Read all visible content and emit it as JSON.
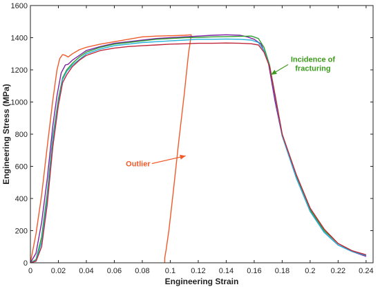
{
  "chart_data": {
    "type": "line",
    "xlabel": "Engineering Strain",
    "ylabel": "Engineering Stress (MPa)",
    "xlim": [
      0,
      0.245
    ],
    "ylim": [
      0,
      1600
    ],
    "xticks": [
      0,
      0.02,
      0.04,
      0.06,
      0.08,
      0.1,
      0.12,
      0.14,
      0.16,
      0.18,
      0.2,
      0.22,
      0.24
    ],
    "xtick_labels": [
      "0",
      "0.02",
      "0.04",
      "0.06",
      "0.08",
      "0.1",
      "0.12",
      "0.14",
      "0.16",
      "0.18",
      "0.2",
      "0.22",
      "0.24"
    ],
    "yticks": [
      0,
      200,
      400,
      600,
      800,
      1000,
      1200,
      1400,
      1600
    ],
    "ytick_labels": [
      "0",
      "200",
      "400",
      "600",
      "800",
      "1000",
      "1200",
      "1400",
      "1600"
    ],
    "grid": false,
    "legend": "none",
    "series": [
      {
        "color": "#f05a28",
        "x": [
          0,
          0.004,
          0.008,
          0.012,
          0.016,
          0.019,
          0.021,
          0.023,
          0.025,
          0.027,
          0.03,
          0.035,
          0.04,
          0.05,
          0.06,
          0.07,
          0.08,
          0.09,
          0.1,
          0.11,
          0.115,
          0.113,
          0.11,
          0.106,
          0.102,
          0.099,
          0.097,
          0.096,
          0.096
        ],
        "y": [
          0,
          180,
          420,
          720,
          1010,
          1200,
          1270,
          1295,
          1290,
          1280,
          1300,
          1325,
          1340,
          1360,
          1375,
          1390,
          1405,
          1410,
          1412,
          1415,
          1418,
          1300,
          1050,
          750,
          430,
          200,
          80,
          30,
          0
        ]
      },
      {
        "color": "#7e1fa6",
        "x": [
          0,
          0.004,
          0.008,
          0.012,
          0.016,
          0.019,
          0.022,
          0.025,
          0.027,
          0.03,
          0.035,
          0.04,
          0.05,
          0.06,
          0.07,
          0.08,
          0.09,
          0.1,
          0.11,
          0.12,
          0.13,
          0.14,
          0.15,
          0.155,
          0.16,
          0.165,
          0.17,
          0.175,
          0.18,
          0.19,
          0.2,
          0.21,
          0.22,
          0.23,
          0.24
        ],
        "y": [
          0,
          60,
          250,
          520,
          850,
          1040,
          1180,
          1230,
          1235,
          1260,
          1290,
          1320,
          1345,
          1365,
          1375,
          1385,
          1395,
          1400,
          1405,
          1410,
          1415,
          1418,
          1415,
          1405,
          1390,
          1360,
          1250,
          1000,
          790,
          530,
          320,
          190,
          110,
          70,
          40
        ]
      },
      {
        "color": "#2e9f2e",
        "x": [
          0,
          0.004,
          0.008,
          0.012,
          0.016,
          0.02,
          0.023,
          0.026,
          0.03,
          0.035,
          0.04,
          0.05,
          0.06,
          0.07,
          0.08,
          0.09,
          0.1,
          0.11,
          0.12,
          0.13,
          0.14,
          0.15,
          0.158,
          0.163,
          0.167,
          0.171,
          0.175,
          0.18,
          0.19,
          0.2,
          0.21,
          0.22,
          0.23,
          0.24
        ],
        "y": [
          0,
          20,
          160,
          430,
          780,
          1020,
          1150,
          1200,
          1240,
          1280,
          1310,
          1340,
          1360,
          1370,
          1380,
          1390,
          1395,
          1400,
          1402,
          1405,
          1407,
          1408,
          1410,
          1395,
          1340,
          1230,
          1040,
          800,
          540,
          330,
          200,
          120,
          75,
          45
        ]
      },
      {
        "color": "#24b2dc",
        "x": [
          0,
          0.004,
          0.008,
          0.012,
          0.016,
          0.02,
          0.023,
          0.026,
          0.03,
          0.035,
          0.04,
          0.05,
          0.06,
          0.07,
          0.08,
          0.09,
          0.1,
          0.11,
          0.12,
          0.13,
          0.14,
          0.15,
          0.158,
          0.163,
          0.167,
          0.171,
          0.175,
          0.18,
          0.19,
          0.2,
          0.21,
          0.22,
          0.23,
          0.24
        ],
        "y": [
          0,
          15,
          130,
          400,
          760,
          1000,
          1140,
          1190,
          1230,
          1265,
          1300,
          1330,
          1350,
          1360,
          1370,
          1375,
          1380,
          1385,
          1390,
          1390,
          1392,
          1390,
          1385,
          1370,
          1320,
          1220,
          1030,
          790,
          530,
          320,
          190,
          110,
          70,
          45
        ]
      },
      {
        "color": "#c0263a",
        "x": [
          0,
          0.004,
          0.008,
          0.012,
          0.016,
          0.02,
          0.023,
          0.026,
          0.03,
          0.035,
          0.04,
          0.05,
          0.06,
          0.07,
          0.08,
          0.09,
          0.1,
          0.11,
          0.12,
          0.13,
          0.14,
          0.15,
          0.158,
          0.163,
          0.167,
          0.171,
          0.175,
          0.18,
          0.19,
          0.2,
          0.21,
          0.22,
          0.23,
          0.24
        ],
        "y": [
          0,
          10,
          100,
          360,
          720,
          980,
          1120,
          1170,
          1220,
          1260,
          1290,
          1320,
          1335,
          1345,
          1350,
          1355,
          1360,
          1362,
          1365,
          1365,
          1367,
          1365,
          1362,
          1355,
          1310,
          1220,
          1040,
          800,
          550,
          340,
          210,
          120,
          75,
          50
        ]
      }
    ],
    "annotations": [
      {
        "text_lines": [
          "Incidence of",
          "fracturing"
        ],
        "color": "#3c9a1c",
        "text_at": [
          0.202,
          1250
        ],
        "arrow_to": [
          0.172,
          1170
        ]
      },
      {
        "text_lines": [
          "Outlier"
        ],
        "color": "#f05a28",
        "text_at": [
          0.077,
          600
        ],
        "arrow_to": [
          0.111,
          665
        ]
      }
    ]
  }
}
